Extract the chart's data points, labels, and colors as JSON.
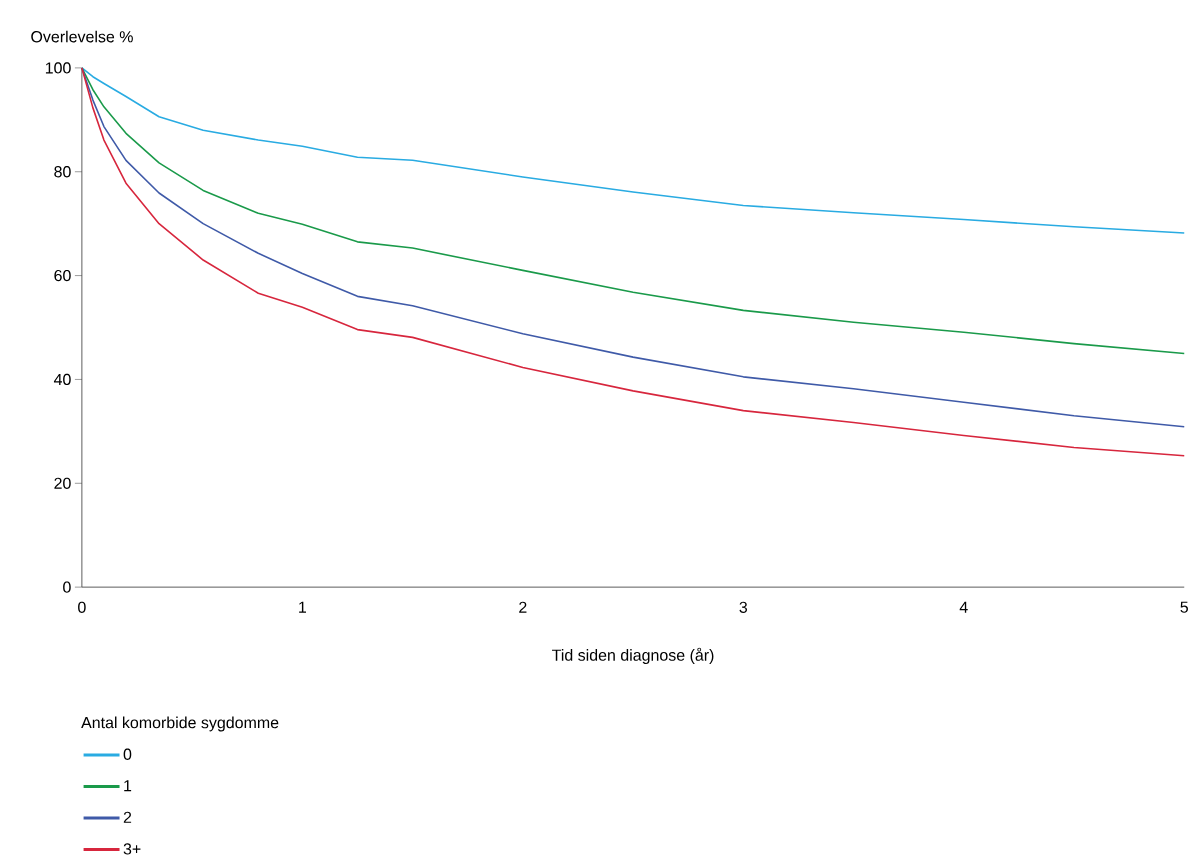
{
  "chart_data": {
    "type": "line",
    "ylabel": "Overlevelse %",
    "xlabel": "Tid siden diagnose (år)",
    "legend_title": "Antal komorbide sygdomme",
    "legend": "bottom",
    "marker": "none",
    "line_style": "solid",
    "x": [
      0,
      0.05,
      0.1,
      0.2,
      0.35,
      0.55,
      0.8,
      1,
      1.25,
      1.5,
      2,
      2.5,
      3,
      3.5,
      4,
      4.5,
      5
    ],
    "xlim": [
      0,
      5
    ],
    "xticks": [
      0,
      1,
      2,
      3,
      4,
      5
    ],
    "ylim": [
      0,
      100
    ],
    "yticks": [
      0,
      20,
      40,
      60,
      80,
      100
    ],
    "series": [
      {
        "name": "0",
        "color": "#29abe2",
        "values": [
          100,
          98.3,
          97,
          94.5,
          90.6,
          88,
          86.1,
          84.9,
          82.8,
          82.2,
          79,
          76.1,
          73.5,
          72.1,
          70.8,
          69.4,
          68.2
        ]
      },
      {
        "name": "1",
        "color": "#1a9a4a",
        "values": [
          100,
          95.8,
          92.5,
          87.4,
          81.7,
          76.4,
          72,
          69.9,
          66.5,
          65.3,
          61,
          56.8,
          53.3,
          51,
          49.1,
          46.9,
          45
        ]
      },
      {
        "name": "2",
        "color": "#3f5aa8",
        "values": [
          100,
          93.8,
          88.7,
          82.2,
          75.9,
          70,
          64.3,
          60.4,
          56,
          54.2,
          48.8,
          44.3,
          40.5,
          38.2,
          35.6,
          33,
          30.9
        ]
      },
      {
        "name": "3+",
        "color": "#d7263d",
        "values": [
          100,
          92.3,
          86.1,
          77.8,
          70,
          63,
          56.6,
          53.9,
          49.6,
          48.1,
          42.3,
          37.8,
          34,
          31.7,
          29.2,
          26.9,
          25.3
        ]
      }
    ]
  }
}
